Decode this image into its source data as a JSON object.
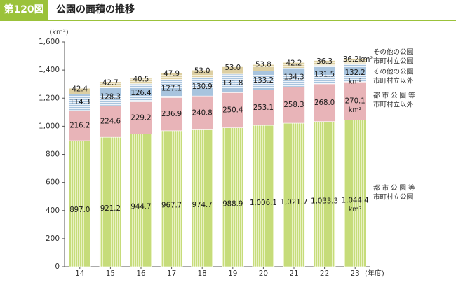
{
  "figure": {
    "number": "第120図",
    "title": "公園の面積の推移"
  },
  "colors": {
    "header": "#9bc23a",
    "s1": "#c6dc7a",
    "s1_stripe": "#e9f2c4",
    "s2": "#e8b4b8",
    "s3": "#a8c4de",
    "s3_stripe": "#eef3f9",
    "s4": "#ddcfa2",
    "s4_stripe": "#f4eed8",
    "axis": "#555555"
  },
  "chart_data": {
    "type": "bar",
    "stacked": true,
    "categories": [
      "14",
      "15",
      "16",
      "17",
      "18",
      "19",
      "20",
      "21",
      "22",
      "23"
    ],
    "x_unit": "(年度)",
    "y_unit": "(km²)",
    "ylim": [
      0,
      1600
    ],
    "yticks": [
      0,
      200,
      400,
      600,
      800,
      1000,
      1200,
      1400,
      1600
    ],
    "ytick_labels": [
      "0",
      "200",
      "400",
      "600",
      "800",
      "1,000",
      "1,200",
      "1,400",
      "1,600"
    ],
    "series": [
      {
        "key": "s1",
        "name": "都市公園等 市町村立公園",
        "values": [
          897.0,
          921.2,
          944.7,
          967.7,
          974.7,
          988.9,
          1006.1,
          1021.7,
          1033.3,
          1044.4
        ],
        "labels": [
          "897.0",
          "921.2",
          "944.7",
          "967.7",
          "974.7",
          "988.9",
          "1,006.1",
          "1,021.7",
          "1,033.3",
          "1,044.4"
        ]
      },
      {
        "key": "s2",
        "name": "都市公園等 市町村立以外",
        "values": [
          216.2,
          224.6,
          229.2,
          236.9,
          240.8,
          250.4,
          253.1,
          258.3,
          268.0,
          270.1
        ],
        "labels": [
          "216.2",
          "224.6",
          "229.2",
          "236.9",
          "240.8",
          "250.4",
          "253.1",
          "258.3",
          "268.0",
          "270.1"
        ]
      },
      {
        "key": "s3",
        "name": "その他の公園 市町村立以外",
        "values": [
          114.3,
          128.3,
          126.4,
          127.1,
          130.9,
          131.8,
          133.2,
          134.3,
          131.5,
          132.2
        ],
        "labels": [
          "114.3",
          "128.3",
          "126.4",
          "127.1",
          "130.9",
          "131.8",
          "133.2",
          "134.3",
          "131.5",
          "132.2"
        ]
      },
      {
        "key": "s4",
        "name": "その他の公園 市町村立公園",
        "values": [
          42.4,
          42.7,
          40.5,
          47.9,
          53.0,
          53.0,
          53.8,
          42.2,
          36.3,
          36.2
        ],
        "labels": [
          "42.4",
          "42.7",
          "40.5",
          "47.9",
          "53.0",
          "53.0",
          "53.8",
          "42.2",
          "36.3",
          "36.2"
        ]
      }
    ],
    "unit_suffix": "km²",
    "legend": [
      {
        "key": "s4",
        "line1": "その他の公園",
        "line2": "市町村立公園"
      },
      {
        "key": "s3",
        "line1": "その他の公園",
        "line2": "市町村立以外"
      },
      {
        "key": "s2",
        "line1": "都 市 公 園 等",
        "line2": "市町村立以外"
      },
      {
        "key": "s1",
        "line1": "都 市 公 園 等",
        "line2": "市町村立公園"
      }
    ]
  }
}
